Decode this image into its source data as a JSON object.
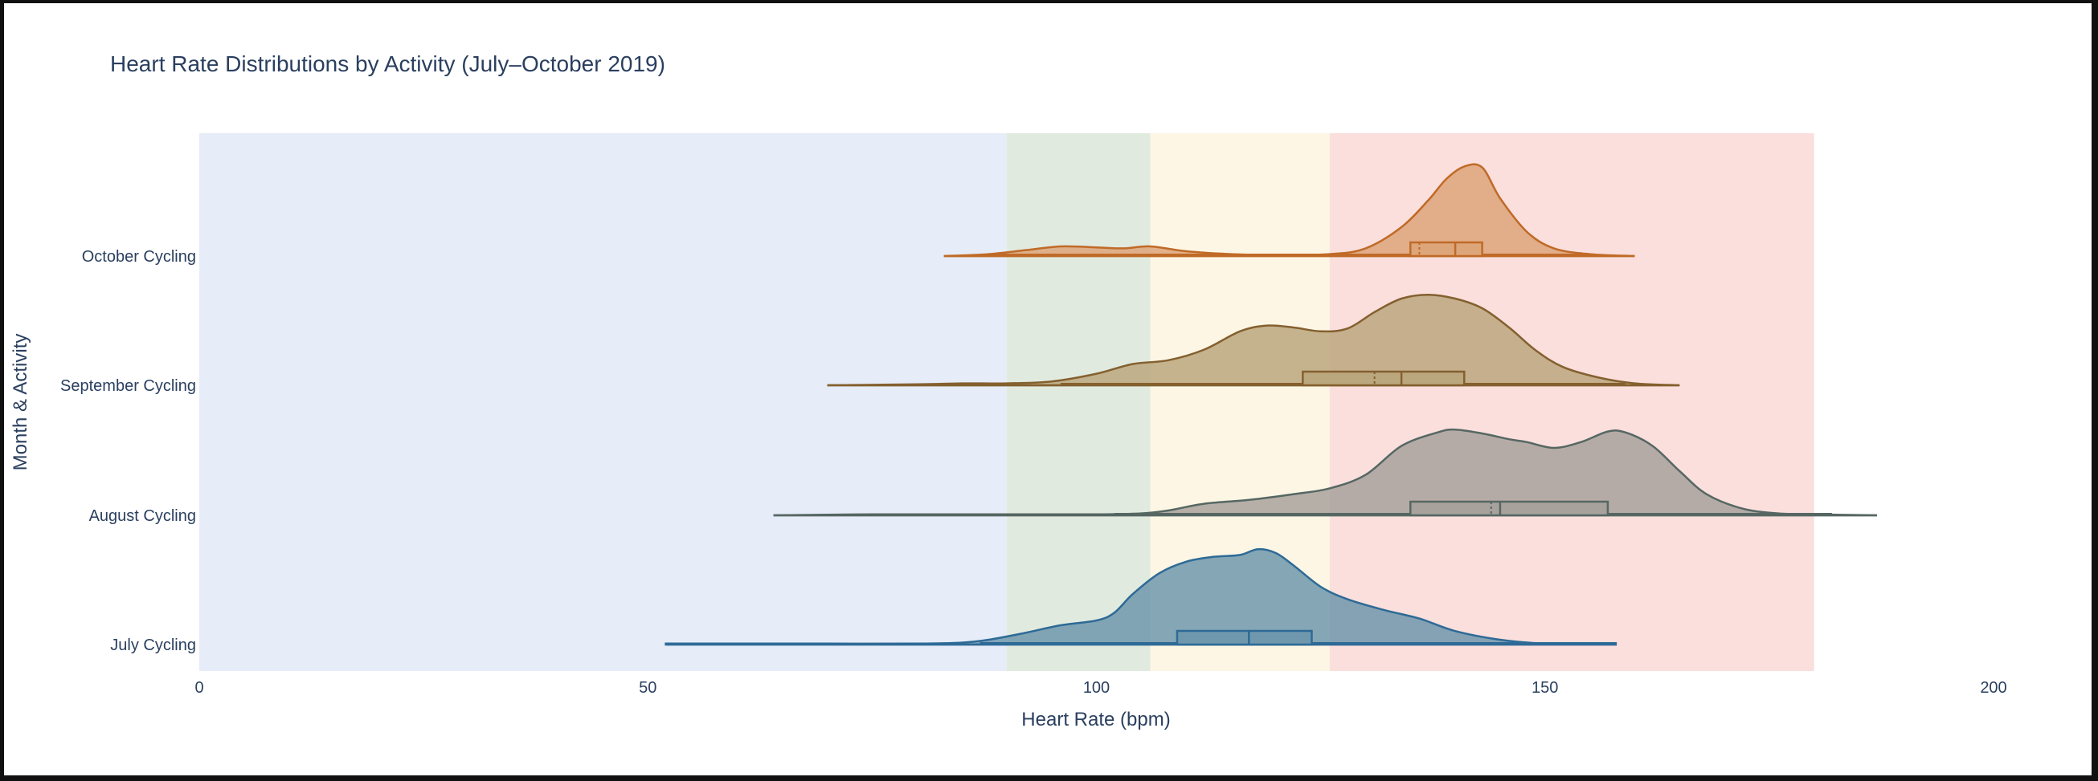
{
  "chart_data": {
    "type": "violin",
    "orientation": "horizontal",
    "title": "Heart Rate Distributions by Activity (July–October 2019)",
    "xlabel": "Heart Rate (bpm)",
    "ylabel": "Month & Activity",
    "xlim": [
      0,
      200
    ],
    "x_ticks": [
      0,
      50,
      100,
      150,
      200
    ],
    "grid": false,
    "legend": "none",
    "zones": [
      {
        "from": 0,
        "to": 90,
        "color": "#e6ecf8"
      },
      {
        "from": 90,
        "to": 106,
        "color": "#e1eadf"
      },
      {
        "from": 106,
        "to": 126,
        "color": "#fdf6e4"
      },
      {
        "from": 126,
        "to": 180,
        "color": "#fadfdd"
      }
    ],
    "categories": [
      "July Cycling",
      "August Cycling",
      "September Cycling",
      "October Cycling"
    ],
    "series": [
      {
        "category": "July Cycling",
        "line_color": "#2e6a96",
        "fill_color": "#6f98ad",
        "min": 52,
        "max": 158,
        "whisker_low": 87,
        "whisker_high": 158,
        "q1": 109,
        "median": 117,
        "mean": 117,
        "q3": 124,
        "density": [
          [
            52,
            0.01
          ],
          [
            60,
            0.01
          ],
          [
            70,
            0.01
          ],
          [
            80,
            0.01
          ],
          [
            85,
            0.02
          ],
          [
            88,
            0.05
          ],
          [
            92,
            0.12
          ],
          [
            96,
            0.2
          ],
          [
            100,
            0.25
          ],
          [
            102,
            0.33
          ],
          [
            104,
            0.52
          ],
          [
            107,
            0.74
          ],
          [
            110,
            0.86
          ],
          [
            113,
            0.91
          ],
          [
            116,
            0.93
          ],
          [
            118,
            0.99
          ],
          [
            120,
            0.95
          ],
          [
            122,
            0.82
          ],
          [
            125,
            0.6
          ],
          [
            128,
            0.47
          ],
          [
            132,
            0.36
          ],
          [
            136,
            0.27
          ],
          [
            140,
            0.14
          ],
          [
            145,
            0.05
          ],
          [
            150,
            0.01
          ],
          [
            158,
            0.0
          ]
        ]
      },
      {
        "category": "August Cycling",
        "line_color": "#566763",
        "fill_color": "#a8a29c",
        "min": 64,
        "max": 187,
        "whisker_low": 102,
        "whisker_high": 182,
        "q1": 135,
        "median": 145,
        "mean": 144,
        "q3": 157,
        "density": [
          [
            64,
            0.0
          ],
          [
            75,
            0.01
          ],
          [
            90,
            0.01
          ],
          [
            100,
            0.01
          ],
          [
            105,
            0.02
          ],
          [
            108,
            0.05
          ],
          [
            112,
            0.12
          ],
          [
            117,
            0.16
          ],
          [
            122,
            0.22
          ],
          [
            126,
            0.28
          ],
          [
            130,
            0.42
          ],
          [
            134,
            0.72
          ],
          [
            138,
            0.86
          ],
          [
            140,
            0.89
          ],
          [
            143,
            0.85
          ],
          [
            146,
            0.79
          ],
          [
            148,
            0.76
          ],
          [
            151,
            0.7
          ],
          [
            154,
            0.76
          ],
          [
            157,
            0.87
          ],
          [
            159,
            0.86
          ],
          [
            162,
            0.72
          ],
          [
            165,
            0.46
          ],
          [
            168,
            0.22
          ],
          [
            172,
            0.07
          ],
          [
            176,
            0.02
          ],
          [
            180,
            0.01
          ],
          [
            187,
            0.0
          ]
        ]
      },
      {
        "category": "September Cycling",
        "line_color": "#84602f",
        "fill_color": "#bba77e",
        "min": 70,
        "max": 165,
        "whisker_low": 96,
        "whisker_high": 159,
        "q1": 123,
        "median": 134,
        "mean": 131,
        "q3": 141,
        "density": [
          [
            70,
            0.0
          ],
          [
            80,
            0.01
          ],
          [
            85,
            0.02
          ],
          [
            90,
            0.02
          ],
          [
            95,
            0.04
          ],
          [
            100,
            0.12
          ],
          [
            104,
            0.22
          ],
          [
            108,
            0.26
          ],
          [
            112,
            0.37
          ],
          [
            116,
            0.56
          ],
          [
            119,
            0.62
          ],
          [
            122,
            0.6
          ],
          [
            125,
            0.56
          ],
          [
            128,
            0.59
          ],
          [
            131,
            0.76
          ],
          [
            134,
            0.9
          ],
          [
            137,
            0.94
          ],
          [
            140,
            0.9
          ],
          [
            143,
            0.8
          ],
          [
            146,
            0.6
          ],
          [
            149,
            0.36
          ],
          [
            152,
            0.19
          ],
          [
            156,
            0.08
          ],
          [
            160,
            0.02
          ],
          [
            165,
            0.0
          ]
        ]
      },
      {
        "category": "October Cycling",
        "line_color": "#c06a27",
        "fill_color": "#dda57a",
        "min": 83,
        "max": 160,
        "whisker_low": 88,
        "whisker_high": 155,
        "q1": 135,
        "median": 140,
        "mean": 136,
        "q3": 143,
        "density": [
          [
            83,
            0.0
          ],
          [
            88,
            0.02
          ],
          [
            92,
            0.06
          ],
          [
            96,
            0.1
          ],
          [
            100,
            0.09
          ],
          [
            103,
            0.08
          ],
          [
            106,
            0.1
          ],
          [
            110,
            0.05
          ],
          [
            115,
            0.02
          ],
          [
            120,
            0.01
          ],
          [
            126,
            0.02
          ],
          [
            130,
            0.08
          ],
          [
            134,
            0.3
          ],
          [
            137,
            0.58
          ],
          [
            139,
            0.8
          ],
          [
            141,
            0.93
          ],
          [
            143,
            0.92
          ],
          [
            145,
            0.6
          ],
          [
            148,
            0.25
          ],
          [
            151,
            0.08
          ],
          [
            155,
            0.02
          ],
          [
            160,
            0.0
          ]
        ]
      }
    ]
  }
}
